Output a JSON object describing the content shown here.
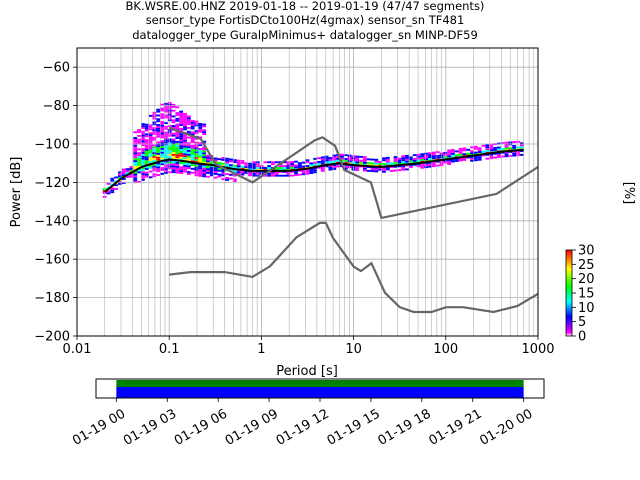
{
  "title_lines": [
    "BK.WSRE.00.HNZ   2019-01-18 -- 2019-01-19  (47/47 segments)",
    "sensor_type FortisDCto100Hz(4gmax) sensor_sn TF481",
    "datalogger_type GuralpMinimus+ datalogger_sn MINP-DF59"
  ],
  "chart_data": [
    {
      "type": "heatmap",
      "description": "Probabilistic power spectral density",
      "xlabel": "Period [s]",
      "ylabel": "Power [dB]",
      "xscale": "log",
      "xlim": [
        0.01,
        1000
      ],
      "ylim": [
        -200,
        -50
      ],
      "xticks": [
        0.01,
        0.1,
        1,
        10,
        100,
        1000
      ],
      "xtick_labels": [
        "0.01",
        "0.1",
        "1",
        "10",
        "100",
        "1000"
      ],
      "yticks": [
        -200,
        -180,
        -160,
        -140,
        -120,
        -100,
        -80,
        -60
      ],
      "grid": true,
      "colorbar": {
        "label": "[%]",
        "range": [
          0,
          30
        ],
        "ticks": [
          0,
          5,
          10,
          15,
          20,
          25,
          30
        ],
        "colors": [
          "#ffffff",
          "#ff00ff",
          "#0000ff",
          "#00ffff",
          "#00ff00",
          "#ffff00",
          "#ff0000"
        ]
      },
      "series": [
        {
          "role": "mean",
          "color": "#000000",
          "x": [
            0.02,
            0.03,
            0.05,
            0.08,
            0.1,
            0.15,
            0.2,
            0.3,
            0.5,
            0.8,
            1,
            2,
            3,
            5,
            7,
            10,
            20,
            50,
            100,
            200,
            400,
            700
          ],
          "y": [
            -125,
            -118,
            -112,
            -109,
            -108,
            -109,
            -110,
            -111,
            -113,
            -114,
            -114,
            -114,
            -113,
            -111,
            -110,
            -111,
            -112,
            -110,
            -108,
            -106,
            -104,
            -103
          ]
        },
        {
          "role": "NHNM",
          "color": "#666666",
          "x": [
            0.1,
            0.22,
            0.32,
            0.8,
            3.8,
            4.6,
            6.3,
            7.9,
            15.4,
            20,
            354.8,
            1000
          ],
          "y": [
            -91.5,
            -97.4,
            -110.5,
            -120,
            -98,
            -96.5,
            -101,
            -113.5,
            -120,
            -138.5,
            -126,
            -112
          ]
        },
        {
          "role": "NLNM",
          "color": "#666666",
          "x": [
            0.1,
            0.17,
            0.4,
            0.8,
            1.24,
            2.4,
            4.3,
            5,
            6,
            10,
            12,
            15.6,
            21.9,
            31.6,
            45,
            70,
            101,
            154,
            328,
            600,
            1000
          ],
          "y": [
            -168,
            -166.7,
            -166.7,
            -169.2,
            -163.7,
            -148.6,
            -141.1,
            -141.1,
            -149,
            -163.8,
            -166.2,
            -162.1,
            -177.5,
            -185,
            -187.5,
            -187.5,
            -185,
            -185,
            -187.5,
            -184.4,
            -178
          ]
        }
      ]
    },
    {
      "type": "bar",
      "description": "Data coverage timeline",
      "xtick_labels": [
        "01-19 00",
        "01-19 03",
        "01-19 06",
        "01-19 09",
        "01-19 12",
        "01-19 15",
        "01-19 18",
        "01-19 21",
        "01-20 00"
      ],
      "coverage_start_hours": 0,
      "coverage_end_hours": 24,
      "axis_start_hours": -1.2,
      "axis_end_hours": 25.2,
      "colors": {
        "used": "#0000ff",
        "available": "#008000"
      }
    }
  ]
}
